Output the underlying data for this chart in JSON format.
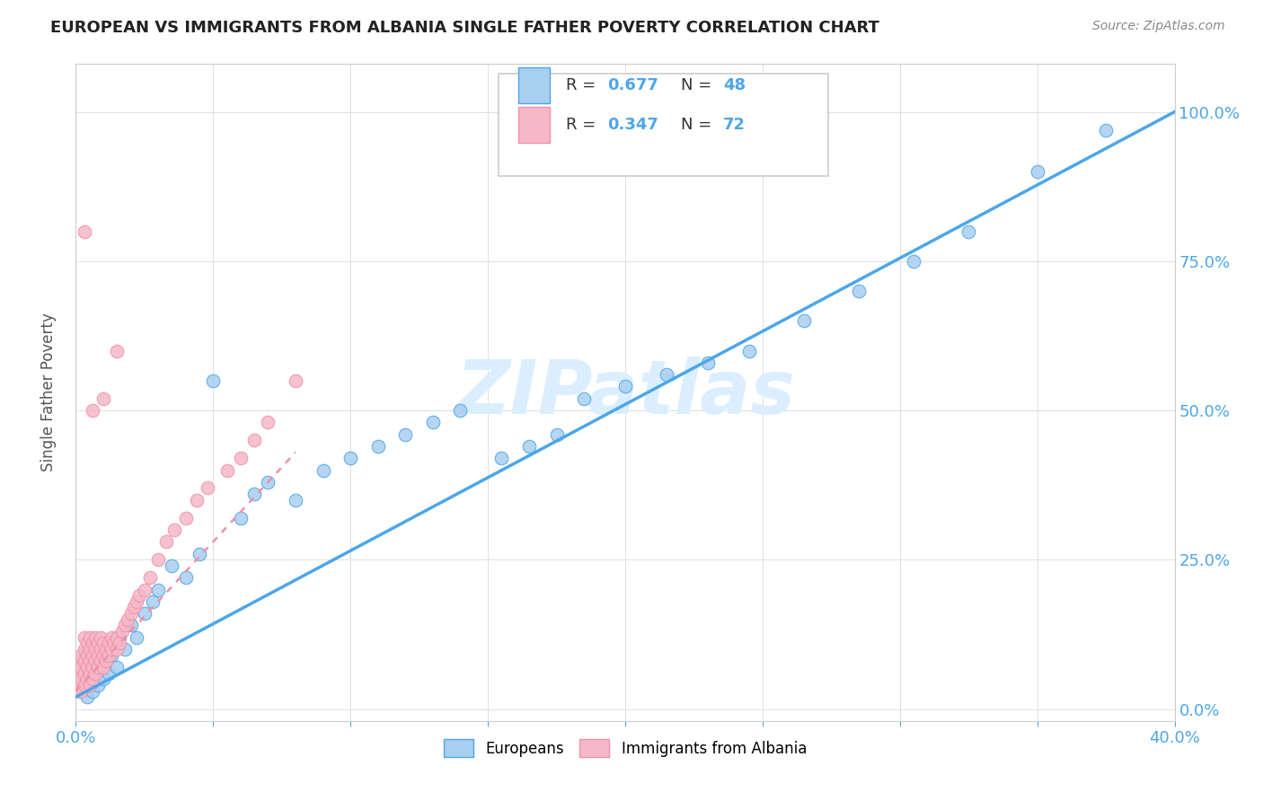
{
  "title": "EUROPEAN VS IMMIGRANTS FROM ALBANIA SINGLE FATHER POVERTY CORRELATION CHART",
  "source": "Source: ZipAtlas.com",
  "ylabel": "Single Father Poverty",
  "yticklabels": [
    "0.0%",
    "25.0%",
    "50.0%",
    "75.0%",
    "100.0%"
  ],
  "yticks": [
    0.0,
    0.25,
    0.5,
    0.75,
    1.0
  ],
  "xlim": [
    0.0,
    0.4
  ],
  "ylim": [
    -0.02,
    1.08
  ],
  "r_european": 0.677,
  "r_albania": 0.347,
  "color_european": "#a8cef0",
  "color_albania": "#f5b8c8",
  "color_european_line": "#4da6e8",
  "color_albania_line": "#f090a8",
  "watermark": "ZIPatlas",
  "watermark_color": "#daeeff",
  "blue_x": [
    0.002,
    0.003,
    0.004,
    0.005,
    0.006,
    0.007,
    0.008,
    0.009,
    0.01,
    0.011,
    0.012,
    0.013,
    0.015,
    0.016,
    0.018,
    0.02,
    0.022,
    0.025,
    0.028,
    0.03,
    0.035,
    0.04,
    0.045,
    0.05,
    0.06,
    0.065,
    0.07,
    0.08,
    0.09,
    0.1,
    0.11,
    0.12,
    0.13,
    0.14,
    0.155,
    0.165,
    0.175,
    0.185,
    0.2,
    0.215,
    0.23,
    0.245,
    0.265,
    0.285,
    0.305,
    0.325,
    0.35,
    0.375
  ],
  "blue_y": [
    0.03,
    0.04,
    0.02,
    0.05,
    0.03,
    0.06,
    0.04,
    0.07,
    0.05,
    0.08,
    0.06,
    0.09,
    0.07,
    0.12,
    0.1,
    0.14,
    0.12,
    0.16,
    0.18,
    0.2,
    0.24,
    0.22,
    0.26,
    0.55,
    0.32,
    0.36,
    0.38,
    0.35,
    0.4,
    0.42,
    0.44,
    0.46,
    0.48,
    0.5,
    0.42,
    0.44,
    0.46,
    0.52,
    0.54,
    0.56,
    0.58,
    0.6,
    0.65,
    0.7,
    0.75,
    0.8,
    0.9,
    0.97
  ],
  "pink_x": [
    0.001,
    0.001,
    0.001,
    0.002,
    0.002,
    0.002,
    0.002,
    0.003,
    0.003,
    0.003,
    0.003,
    0.003,
    0.004,
    0.004,
    0.004,
    0.004,
    0.005,
    0.005,
    0.005,
    0.005,
    0.005,
    0.006,
    0.006,
    0.006,
    0.006,
    0.007,
    0.007,
    0.007,
    0.007,
    0.008,
    0.008,
    0.008,
    0.009,
    0.009,
    0.009,
    0.01,
    0.01,
    0.01,
    0.011,
    0.011,
    0.012,
    0.012,
    0.013,
    0.013,
    0.014,
    0.015,
    0.015,
    0.016,
    0.017,
    0.018,
    0.019,
    0.02,
    0.021,
    0.022,
    0.023,
    0.025,
    0.027,
    0.03,
    0.033,
    0.036,
    0.04,
    0.044,
    0.048,
    0.055,
    0.06,
    0.065,
    0.07,
    0.08,
    0.006,
    0.01,
    0.015,
    0.003
  ],
  "pink_y": [
    0.04,
    0.06,
    0.08,
    0.03,
    0.05,
    0.07,
    0.09,
    0.04,
    0.06,
    0.08,
    0.1,
    0.12,
    0.05,
    0.07,
    0.09,
    0.11,
    0.04,
    0.06,
    0.08,
    0.1,
    0.12,
    0.05,
    0.07,
    0.09,
    0.11,
    0.06,
    0.08,
    0.1,
    0.12,
    0.07,
    0.09,
    0.11,
    0.08,
    0.1,
    0.12,
    0.07,
    0.09,
    0.11,
    0.08,
    0.1,
    0.09,
    0.11,
    0.1,
    0.12,
    0.11,
    0.1,
    0.12,
    0.11,
    0.13,
    0.14,
    0.15,
    0.16,
    0.17,
    0.18,
    0.19,
    0.2,
    0.22,
    0.25,
    0.28,
    0.3,
    0.32,
    0.35,
    0.37,
    0.4,
    0.42,
    0.45,
    0.48,
    0.55,
    0.5,
    0.52,
    0.6,
    0.8
  ]
}
